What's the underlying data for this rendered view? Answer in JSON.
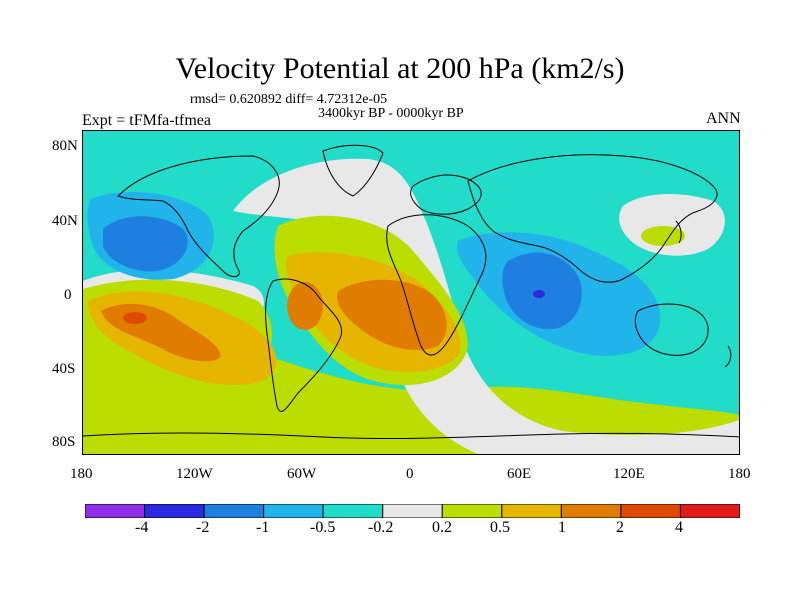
{
  "header": {
    "title": "Velocity Potential at 200 hPa (km2/s)",
    "stats": "rmsd= 0.620892 diff= 4.72312e-05",
    "period": "3400kyr BP - 0000kyr BP",
    "experiment": "Expt = tFMfa-tfmea",
    "season": "ANN"
  },
  "axes": {
    "y_ticks": [
      "80N",
      "40N",
      "0",
      "40S",
      "80S"
    ],
    "x_ticks": [
      "180",
      "120W",
      "60W",
      "0",
      "60E",
      "120E",
      "180"
    ]
  },
  "colorbar": {
    "labels": [
      "-4",
      "-2",
      "-1",
      "-0.5",
      "-0.2",
      "0.2",
      "0.5",
      "1",
      "2",
      "4"
    ],
    "colors": [
      "#8f2ee6",
      "#2a2ae0",
      "#1f7fe0",
      "#20b4ea",
      "#20dcc8",
      "#e8e8e8",
      "#bbdd00",
      "#e6b500",
      "#e07d00",
      "#e04a00",
      "#e01a1a"
    ]
  },
  "palette": {
    "ocean_base": "#20dcc8",
    "neutral": "#e8e8e8",
    "pos_small": "#bbdd00",
    "pos_mid": "#e6b500",
    "pos_large": "#e07d00",
    "neg_small": "#20b4ea",
    "neg_mid": "#1f7fe0",
    "neg_strong": "#2a2ae0",
    "pos_peak": "#e04a00"
  }
}
